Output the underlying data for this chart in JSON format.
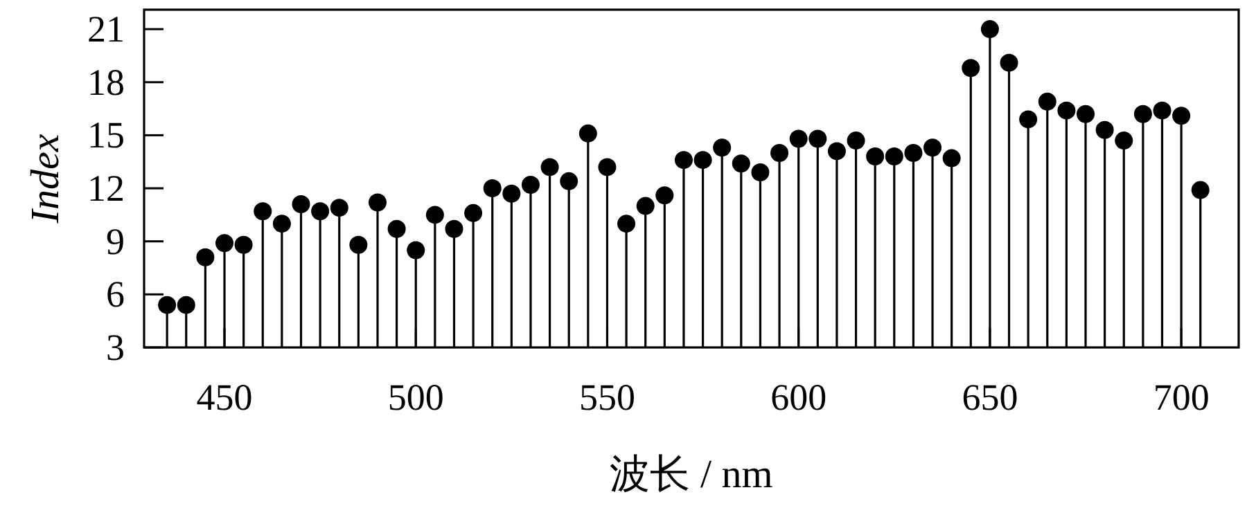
{
  "chart_data": {
    "type": "lollipop",
    "xlabel": "波长 / nm",
    "ylabel": "Index",
    "color": "#000000",
    "marker": "circle",
    "x": [
      435,
      440,
      445,
      450,
      455,
      460,
      465,
      470,
      475,
      480,
      485,
      490,
      495,
      500,
      505,
      510,
      515,
      520,
      525,
      530,
      535,
      540,
      545,
      550,
      555,
      560,
      565,
      570,
      575,
      580,
      585,
      590,
      595,
      600,
      605,
      610,
      615,
      620,
      625,
      630,
      635,
      640,
      645,
      650,
      655,
      660,
      665,
      670,
      675,
      680,
      685,
      690,
      695,
      700,
      705
    ],
    "values": [
      5.4,
      5.4,
      8.1,
      8.9,
      8.8,
      10.7,
      10.0,
      11.1,
      10.7,
      10.9,
      8.8,
      11.2,
      9.7,
      8.5,
      10.5,
      9.7,
      10.6,
      12.0,
      11.7,
      12.2,
      13.2,
      12.4,
      15.1,
      13.2,
      10.0,
      11.0,
      11.6,
      13.6,
      13.6,
      14.3,
      13.4,
      12.9,
      14.0,
      14.8,
      14.8,
      14.1,
      14.7,
      13.8,
      13.8,
      14.0,
      14.3,
      13.7,
      18.8,
      21.0,
      19.1,
      15.9,
      16.9,
      16.4,
      16.2,
      15.3,
      14.7,
      16.2,
      16.4,
      16.1,
      11.9
    ],
    "xlim": [
      429,
      715
    ],
    "ylim": [
      3,
      22.1
    ],
    "xticks": [
      450,
      500,
      550,
      600,
      650,
      700
    ],
    "yticks": [
      3,
      6,
      9,
      12,
      15,
      18,
      21
    ]
  }
}
